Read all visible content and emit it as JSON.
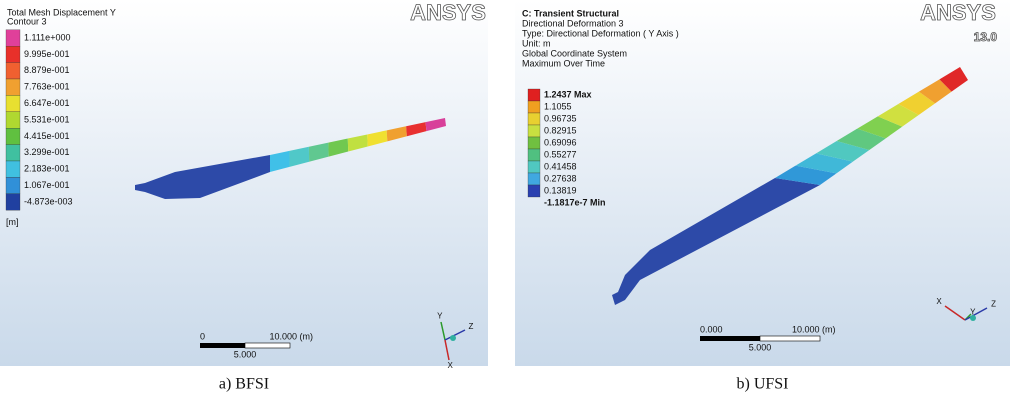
{
  "panels": [
    {
      "header": {
        "lines": [
          "Total Mesh Displacement Y",
          "Contour 3"
        ]
      },
      "legend": {
        "labels": [
          "1.111e+000",
          "9.995e-001",
          "8.879e-001",
          "7.763e-001",
          "6.647e-001",
          "5.531e-001",
          "4.415e-001",
          "3.299e-001",
          "2.183e-001",
          "1.067e-001",
          "-4.873e-003"
        ],
        "unit": "[m]"
      },
      "logo": "ANSYS",
      "scale": {
        "start": "0",
        "end": "10.000 (m)",
        "mid": "5.000"
      },
      "triad": [
        "Y",
        "Z",
        "X"
      ],
      "caption": "a) BFSI"
    },
    {
      "header": {
        "lines": [
          "C: Transient Structural",
          "Directional Deformation 3",
          "Type: Directional Deformation ( Y Axis )",
          "Unit: m",
          "Global Coordinate System",
          "Maximum Over Time"
        ]
      },
      "legend": {
        "labels": [
          "1.2437 Max",
          "1.1055",
          "0.96735",
          "0.82915",
          "0.69096",
          "0.55277",
          "0.41458",
          "0.27638",
          "0.13819",
          "-1.1817e-7 Min"
        ]
      },
      "logo": "ANSYS",
      "version": "13.0",
      "scale": {
        "start": "0.000",
        "end": "10.000 (m)",
        "mid": "5.000"
      },
      "triad": [
        "X",
        "Y",
        "Z"
      ],
      "caption": "b) UFSI"
    }
  ]
}
